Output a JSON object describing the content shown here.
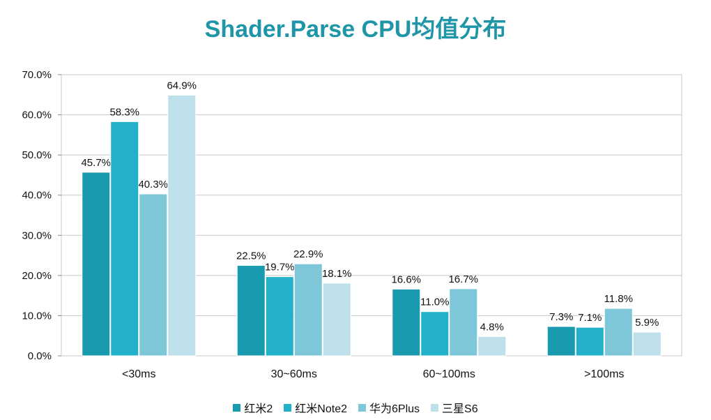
{
  "title": "Shader.Parse CPU均值分布",
  "chart_data": {
    "type": "bar",
    "title": "Shader.Parse CPU均值分布",
    "categories": [
      "<30ms",
      "30~60ms",
      "60~100ms",
      ">100ms"
    ],
    "series": [
      {
        "name": "红米2",
        "color": "#1a9aae",
        "values": [
          45.7,
          22.5,
          16.6,
          7.3
        ]
      },
      {
        "name": "红米Note2",
        "color": "#22b1c9",
        "values": [
          58.3,
          19.7,
          11.0,
          7.1
        ]
      },
      {
        "name": "华为6Plus",
        "color": "#7ec7d9",
        "values": [
          40.3,
          22.9,
          16.7,
          11.8
        ]
      },
      {
        "name": "三星S6",
        "color": "#bde0ea",
        "values": [
          64.9,
          18.1,
          4.8,
          5.9
        ]
      }
    ],
    "value_labels": [
      [
        "45.7%",
        "22.5%",
        "16.6%",
        "7.3%"
      ],
      [
        "58.3%",
        "19.7%",
        "11.0%",
        "7.1%"
      ],
      [
        "40.3%",
        "22.9%",
        "16.7%",
        "11.8%"
      ],
      [
        "64.9%",
        "18.1%",
        "4.8%",
        "5.9%"
      ]
    ],
    "yticks": [
      0,
      10,
      20,
      30,
      40,
      50,
      60,
      70
    ],
    "ytick_labels": [
      "0.0%",
      "10.0%",
      "20.0%",
      "30.0%",
      "40.0%",
      "50.0%",
      "60.0%",
      "70.0%"
    ],
    "ylim": [
      0,
      70
    ],
    "xlabel": "",
    "ylabel": "",
    "grid": true,
    "legend_position": "bottom"
  }
}
